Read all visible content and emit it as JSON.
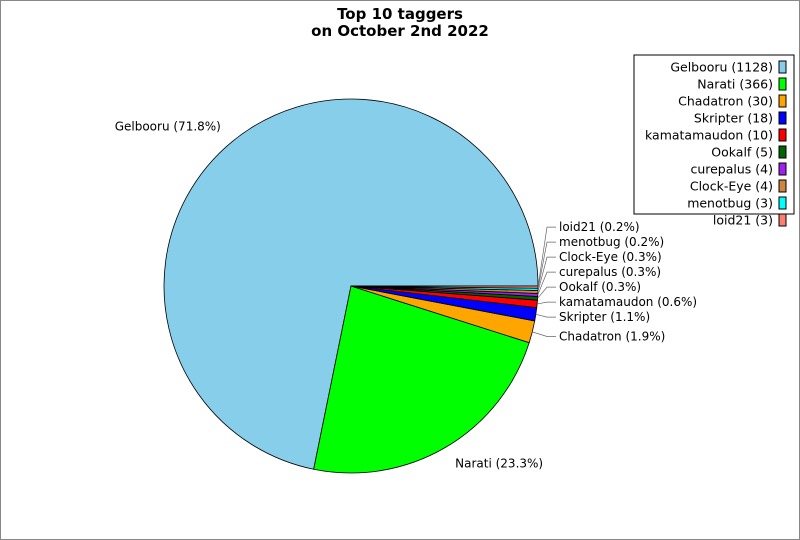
{
  "chart_data": {
    "type": "pie",
    "title_line1": "Top 10 taggers",
    "title_line2": "on October 2nd 2022",
    "legend_position": "top-right",
    "slices": [
      {
        "label": "Gelbooru",
        "value": 1128,
        "percent": "71.8%",
        "color": "#87ceeb"
      },
      {
        "label": "Narati",
        "value": 366,
        "percent": "23.3%",
        "color": "#00ff00"
      },
      {
        "label": "Chadatron",
        "value": 30,
        "percent": "1.9%",
        "color": "#ffa500"
      },
      {
        "label": "Skripter",
        "value": 18,
        "percent": "1.1%",
        "color": "#0000ff"
      },
      {
        "label": "kamatamaudon",
        "value": 10,
        "percent": "0.6%",
        "color": "#ff0000"
      },
      {
        "label": "Ookalf",
        "value": 5,
        "percent": "0.3%",
        "color": "#006400"
      },
      {
        "label": "curepalus",
        "value": 4,
        "percent": "0.3%",
        "color": "#a020f0"
      },
      {
        "label": "Clock-Eye",
        "value": 4,
        "percent": "0.3%",
        "color": "#cd853f"
      },
      {
        "label": "menotbug",
        "value": 3,
        "percent": "0.2%",
        "color": "#00ffff"
      },
      {
        "label": "loid21",
        "value": 3,
        "percent": "0.2%",
        "color": "#fa8072"
      }
    ]
  }
}
